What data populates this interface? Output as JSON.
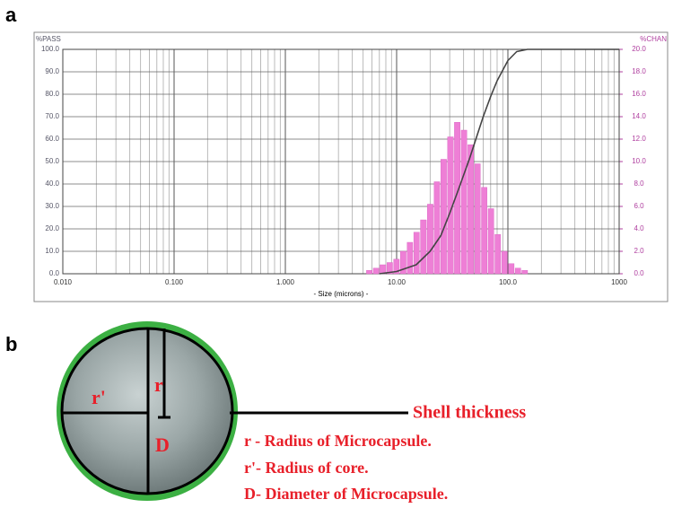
{
  "chart_data": {
    "type": "histogram",
    "panel_label": "a",
    "y_label": "%PASS",
    "y2_label": "%CHAN",
    "x_label": "- Size (microns) -",
    "xlog": true,
    "grid": true,
    "xlim": [
      0.01,
      1000
    ],
    "xticks": [
      {
        "value": 0.01,
        "label": "0.010"
      },
      {
        "value": 0.1,
        "label": "0.100"
      },
      {
        "value": 1,
        "label": "1.000"
      },
      {
        "value": 10,
        "label": "10.00"
      },
      {
        "value": 100,
        "label": "100.0"
      },
      1000
    ],
    "xminor": [
      0.02,
      0.03,
      0.04,
      0.05,
      0.06,
      0.07,
      0.08,
      0.09,
      0.2,
      0.3,
      0.4,
      0.5,
      0.6,
      0.7,
      0.8,
      0.9,
      2,
      3,
      4,
      5,
      6,
      7,
      8,
      9,
      20,
      30,
      40,
      50,
      60,
      70,
      80,
      90,
      200,
      300,
      400,
      500,
      600,
      700,
      800,
      900
    ],
    "ylim": [
      0,
      100
    ],
    "yticks": [
      {
        "value": 0,
        "label": "0.0"
      },
      {
        "value": 10,
        "label": "10.0"
      },
      {
        "value": 20,
        "label": "20.0"
      },
      {
        "value": 30,
        "label": "30.0"
      },
      {
        "value": 40,
        "label": "40.0"
      },
      {
        "value": 50,
        "label": "50.0"
      },
      {
        "value": 60,
        "label": "60.0"
      },
      {
        "value": 70,
        "label": "70.0"
      },
      {
        "value": 80,
        "label": "80.0"
      },
      {
        "value": 90,
        "label": "90.0"
      },
      {
        "value": 100,
        "label": "100.0"
      }
    ],
    "y2lim": [
      0,
      20
    ],
    "y2ticks": [
      {
        "value": 0,
        "label": "0.0"
      },
      {
        "value": 2,
        "label": "2.0"
      },
      {
        "value": 4,
        "label": "4.0"
      },
      {
        "value": 6,
        "label": "6.0"
      },
      {
        "value": 8,
        "label": "8.0"
      },
      {
        "value": 10,
        "label": "10.0"
      },
      {
        "value": 12,
        "label": "12.0"
      },
      {
        "value": 14,
        "label": "14.0"
      },
      {
        "value": 16,
        "label": "16.0"
      },
      {
        "value": 18,
        "label": "18.0"
      },
      {
        "value": 20,
        "label": "20.0"
      }
    ],
    "bins": [
      5.3,
      6.1,
      7.0,
      8.1,
      9.3,
      10.7,
      12.3,
      14.1,
      16.2,
      18.7,
      21.5,
      24.7,
      28.4,
      32.7,
      37.6,
      43.2,
      49.7,
      57.2,
      65.7,
      75.6,
      86.9,
      100,
      115,
      132,
      152
    ],
    "values": [
      0.3,
      0.5,
      0.8,
      1.0,
      1.3,
      2.0,
      2.8,
      3.7,
      4.8,
      6.2,
      8.2,
      10.2,
      12.2,
      13.5,
      12.8,
      11.5,
      9.8,
      7.7,
      5.8,
      3.5,
      2.0,
      0.9,
      0.5,
      0.3
    ],
    "axis": "y2",
    "color": "#ee7fd6",
    "curve": {
      "color": "#444444",
      "x": [
        7,
        10,
        15,
        20,
        25,
        30,
        35,
        40,
        45,
        50,
        60,
        70,
        80,
        100,
        120,
        150,
        1000
      ],
      "values": [
        0,
        1,
        4,
        10,
        17,
        27,
        36,
        44,
        51,
        58,
        70,
        79,
        86,
        95,
        99,
        100,
        100
      ]
    }
  },
  "diagram": {
    "panel_label": "b",
    "r_prime": "r'",
    "r": "r",
    "d": "D",
    "shell": "Shell thickness",
    "legend": [
      "r - Radius of Microcapsule.",
      "r'- Radius of core.",
      "D- Diameter of Microcapsule."
    ]
  }
}
